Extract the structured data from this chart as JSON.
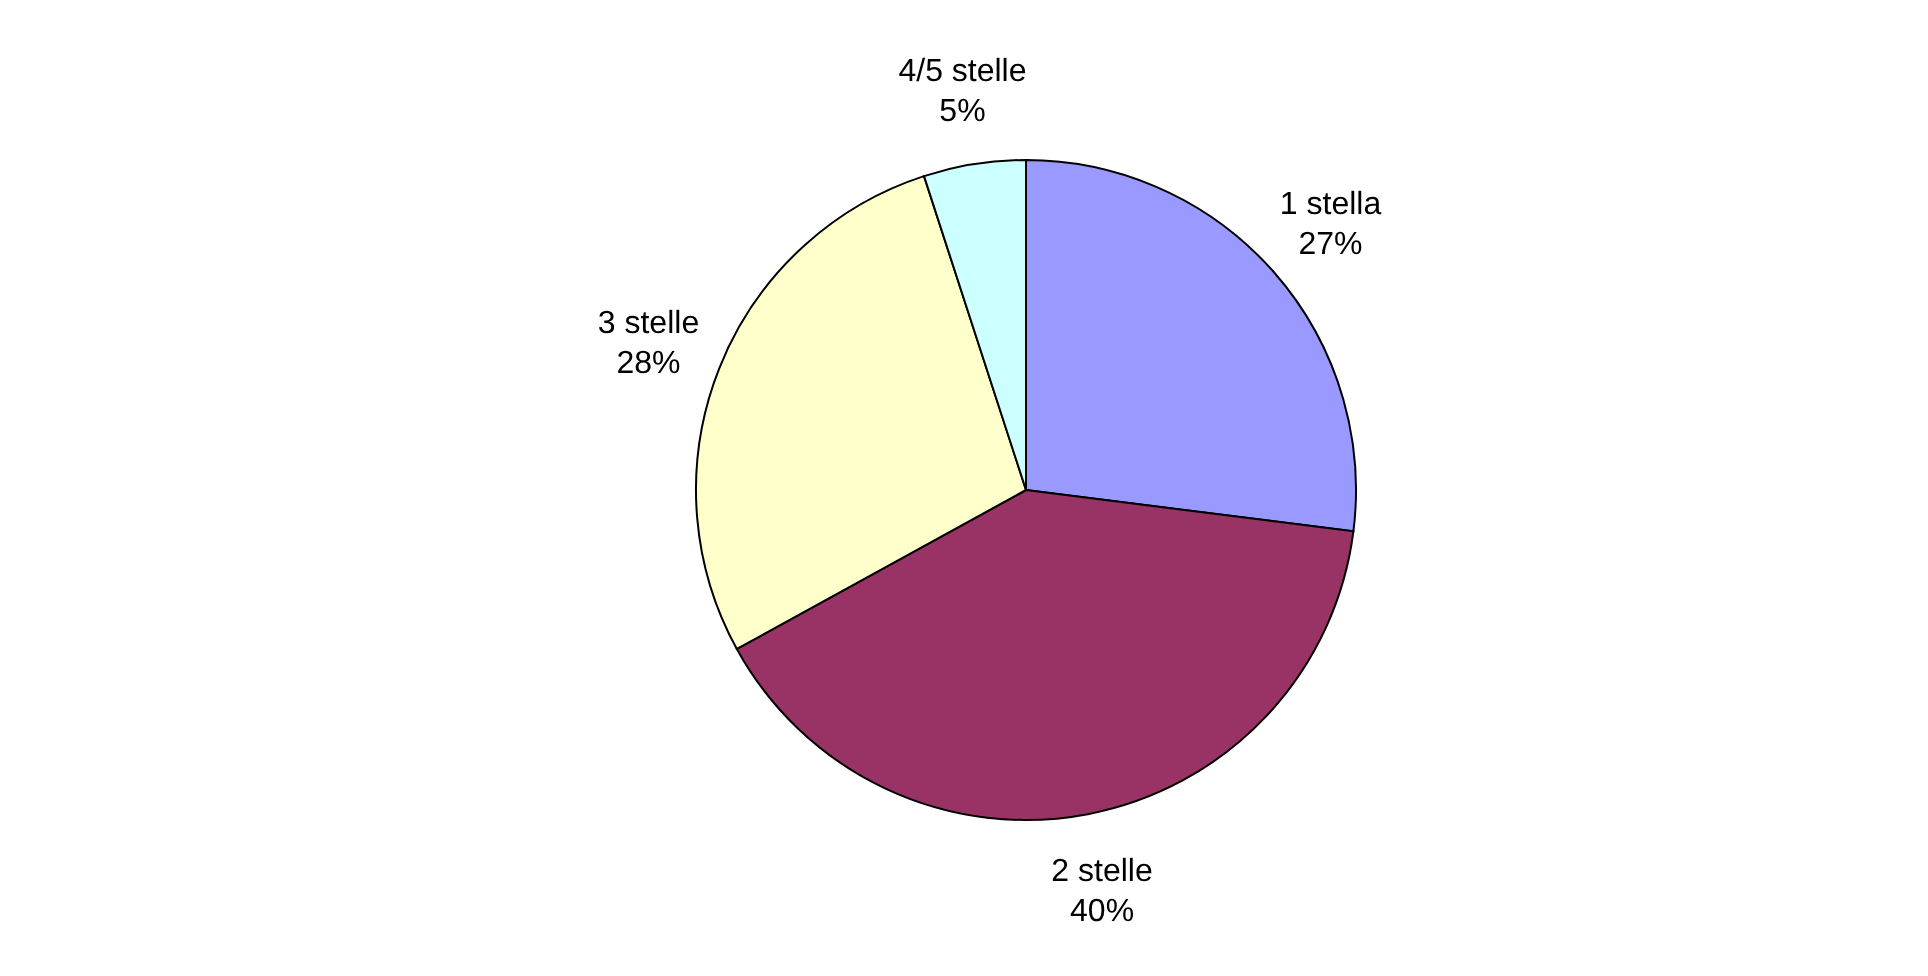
{
  "chart_data": {
    "type": "pie",
    "categories": [
      "1 stella",
      "2 stelle",
      "3 stelle",
      "4/5 stelle"
    ],
    "values": [
      27,
      40,
      28,
      5
    ],
    "value_labels": [
      "27%",
      "40%",
      "28%",
      "5%"
    ],
    "colors": [
      "#9999ff",
      "#993366",
      "#ffffcc",
      "#ccffff"
    ],
    "legend": false
  }
}
